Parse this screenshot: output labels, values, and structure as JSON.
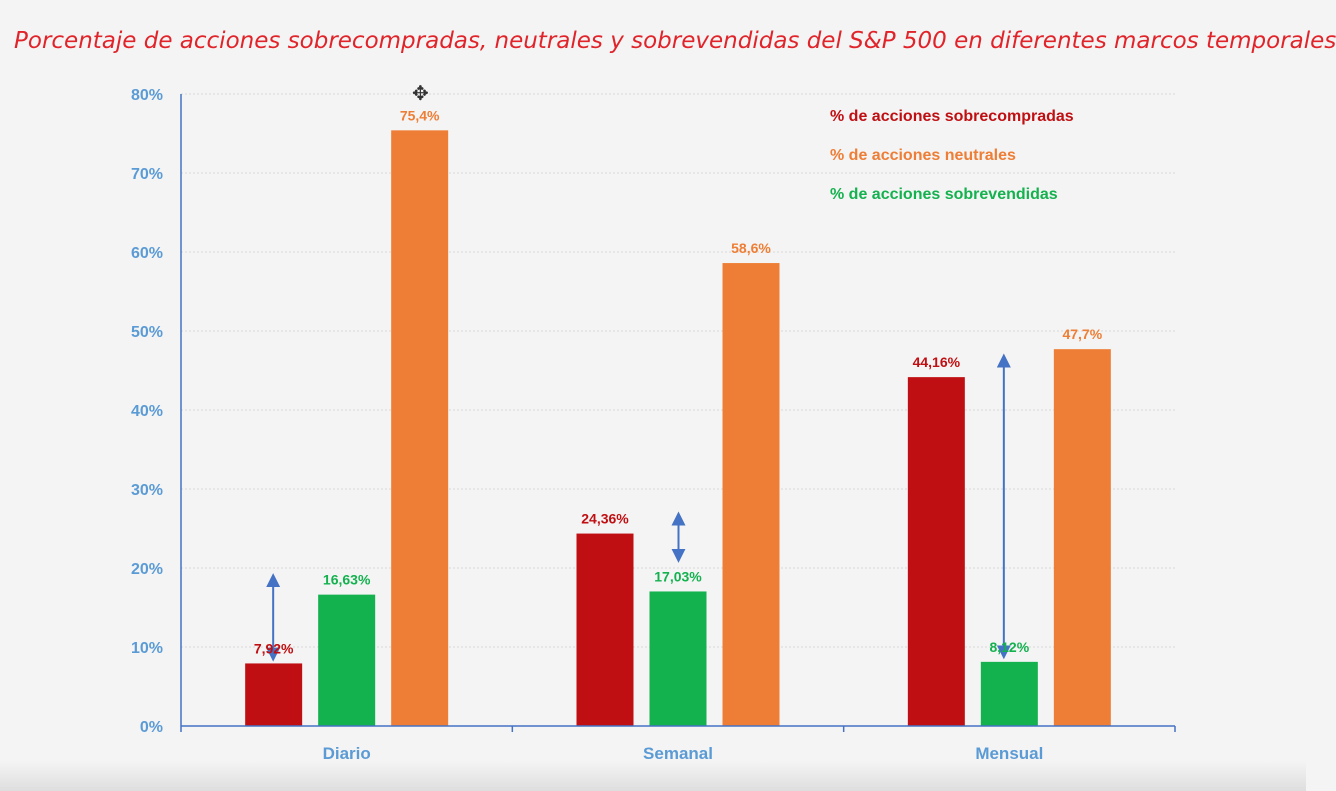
{
  "title": "Porcentaje de acciones sobrecompradas, neutrales y sobrevendidas del S&P 500 en diferentes marcos temporales",
  "cursor_icon": "move-cursor-icon",
  "colors": {
    "axis": "#4472c4",
    "tick_text": "#5b9bd5",
    "grid": "#d9d9d9",
    "arrow": "#4472c4"
  },
  "chart_data": {
    "type": "bar",
    "categories": [
      "Diario",
      "Semanal",
      "Mensual"
    ],
    "series": [
      {
        "name": "% de acciones sobrecompradas",
        "color": "#c00f12",
        "values": [
          7.92,
          24.36,
          44.16
        ],
        "labels": [
          "7,92%",
          "24,36%",
          "44,16%"
        ]
      },
      {
        "name": "% de acciones sobrevendidas",
        "color": "#14b14f",
        "values": [
          16.63,
          17.03,
          8.12
        ],
        "labels": [
          "16,63%",
          "17,03%",
          "8,12%"
        ]
      },
      {
        "name": "% de acciones neutrales",
        "color": "#ee7e35",
        "values": [
          75.4,
          58.6,
          47.7
        ],
        "labels": [
          "75,4%",
          "58,6%",
          "47,7%"
        ]
      }
    ],
    "ylim": [
      0,
      80
    ],
    "yticks": [
      0,
      10,
      20,
      30,
      40,
      50,
      60,
      70,
      80
    ],
    "ytick_labels": [
      "0%",
      "10%",
      "20%",
      "30%",
      "40%",
      "50%",
      "60%",
      "70%",
      "80%"
    ],
    "legend": {
      "position": "top-right",
      "entries": [
        {
          "label": "% de acciones sobrecompradas",
          "color": "#c00f12"
        },
        {
          "label": "% de acciones neutrales",
          "color": "#ee7e35"
        },
        {
          "label": "% de acciones sobrevendidas",
          "color": "#14b14f"
        }
      ]
    },
    "annotations": [
      {
        "type": "double-arrow",
        "category": "Diario",
        "from": 8.5,
        "to": 19.0
      },
      {
        "type": "double-arrow",
        "category": "Semanal",
        "from": 21.0,
        "to": 26.8
      },
      {
        "type": "double-arrow",
        "category": "Mensual",
        "from": 8.8,
        "to": 46.8
      }
    ],
    "grid": true
  }
}
